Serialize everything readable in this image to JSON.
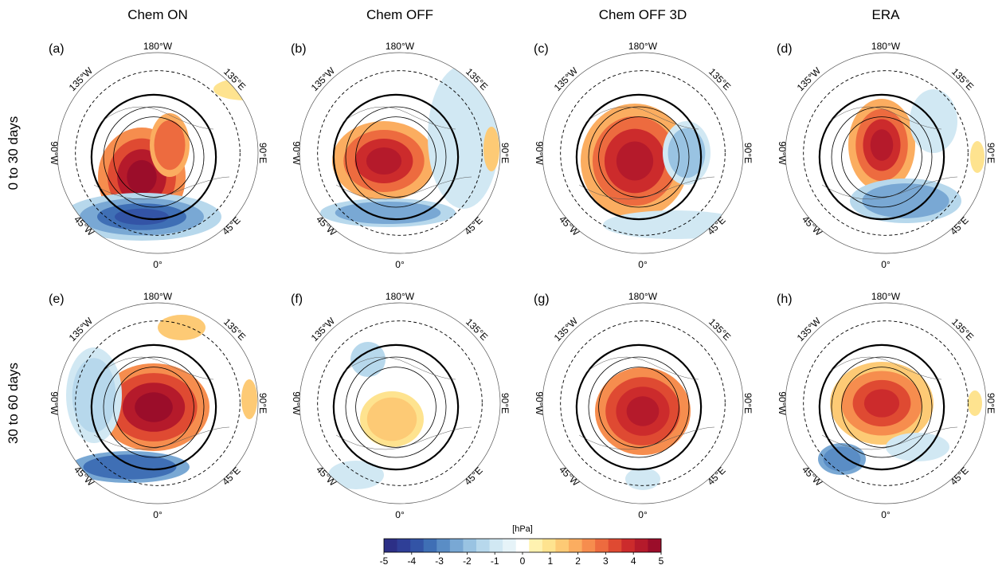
{
  "columns": [
    "Chem ON",
    "Chem OFF",
    "Chem OFF 3D",
    "ERA"
  ],
  "rows": [
    "0 to 30 days",
    "30 to 60 days"
  ],
  "panels": [
    {
      "label": "(a)"
    },
    {
      "label": "(b)"
    },
    {
      "label": "(c)"
    },
    {
      "label": "(d)"
    },
    {
      "label": "(e)"
    },
    {
      "label": "(f)"
    },
    {
      "label": "(g)"
    },
    {
      "label": "(h)"
    }
  ],
  "longitude_labels": {
    "top": "180°W",
    "bottom": "0°",
    "upper_left": "135°W",
    "upper_right": "135°E",
    "left": "90°W",
    "right": "90°E",
    "lower_left": "45°W",
    "lower_right": "45°E"
  },
  "colorbar": {
    "unit": "[hPa]",
    "min": -5,
    "max": 5,
    "ticks": [
      "-5",
      "-4",
      "-3",
      "-2",
      "-1",
      "0",
      "1",
      "2",
      "3",
      "4",
      "5"
    ],
    "colors": [
      "#2c2f86",
      "#2f3f97",
      "#3354a6",
      "#3f6fb5",
      "#5a8dc5",
      "#79a8d4",
      "#99c3e2",
      "#b7d8ec",
      "#d1e8f3",
      "#e6f3f8",
      "#ffffff",
      "#fff2b0",
      "#fee38f",
      "#fdca75",
      "#fbad60",
      "#f68d4e",
      "#ed6b3f",
      "#df4a32",
      "#cc2b2c",
      "#b51a2b",
      "#9b0d2a"
    ]
  }
}
